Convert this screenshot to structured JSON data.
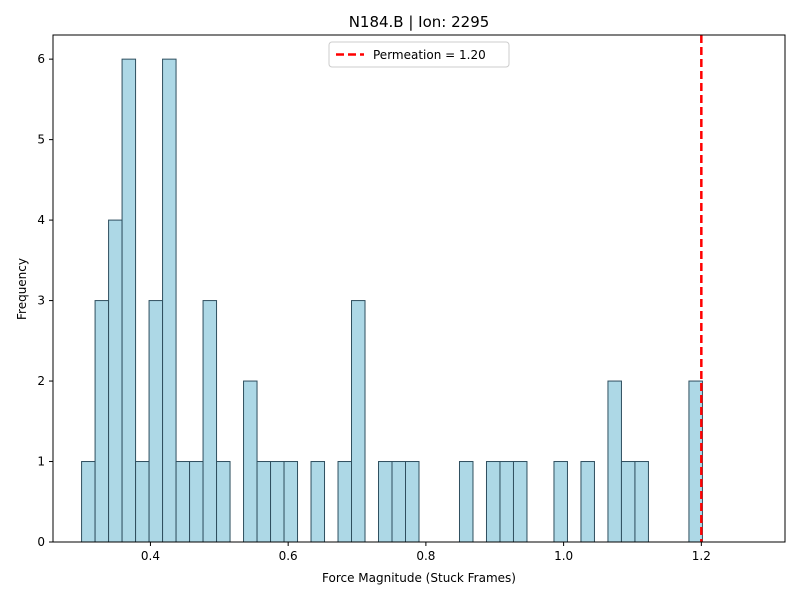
{
  "chart_data": {
    "type": "bar",
    "title": "N184.B | Ion: 2295",
    "xlabel": "Force Magnitude (Stuck Frames)",
    "ylabel": "Frequency",
    "xlim": [
      0.2585,
      1.3215
    ],
    "ylim": [
      0,
      6.3
    ],
    "xticks": [
      "0.4",
      "0.6",
      "0.8",
      "1.0",
      "1.2"
    ],
    "yticks": [
      "0",
      "1",
      "2",
      "3",
      "4",
      "5",
      "6"
    ],
    "bin_start": 0.3,
    "bin_width": 0.0196,
    "counts": [
      1,
      3,
      4,
      6,
      1,
      3,
      6,
      1,
      1,
      3,
      1,
      0,
      2,
      1,
      1,
      1,
      0,
      1,
      0,
      1,
      3,
      0,
      1,
      1,
      1,
      0,
      0,
      0,
      1,
      0,
      1,
      1,
      1,
      0,
      0,
      1,
      0,
      1,
      0,
      2,
      1,
      1,
      0,
      0,
      0,
      2
    ],
    "bar_color": "#add8e6",
    "bar_edge_color": "#2f4f5f",
    "reference_line": {
      "x": 1.2,
      "color": "#ff0000",
      "style": "dashed"
    },
    "legend": {
      "label": "Permeation = 1.20",
      "position": "top-center"
    }
  }
}
